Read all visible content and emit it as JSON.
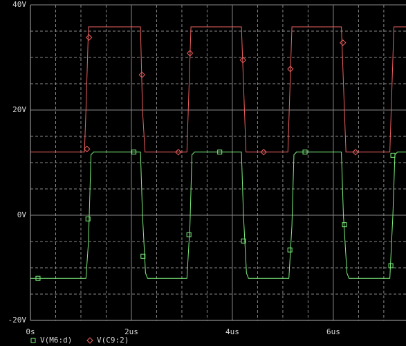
{
  "chart_data": {
    "type": "line",
    "background": "#000000",
    "grid": true,
    "xticks": [
      {
        "value": 0,
        "label": "0s"
      },
      {
        "value": 2,
        "label": "2us"
      },
      {
        "value": 4,
        "label": "4us"
      },
      {
        "value": 6,
        "label": "6us"
      }
    ],
    "xminor": [
      0.5,
      1,
      1.5,
      2.5,
      3,
      3.5,
      4.5,
      5,
      5.5,
      6.5,
      7
    ],
    "xlim": [
      0,
      7.44
    ],
    "yticks": [
      {
        "value": -20,
        "label": "-20V"
      },
      {
        "value": 0,
        "label": "0V"
      },
      {
        "value": 20,
        "label": "20V"
      },
      {
        "value": 40,
        "label": "40V"
      }
    ],
    "yminor": [
      -15,
      -10,
      -5,
      5,
      10,
      15,
      25,
      30,
      35
    ],
    "ylim": [
      -20,
      40
    ],
    "series": [
      {
        "name": "V(M6:d)",
        "color": "#7cf07c",
        "marker": "square",
        "x": [
          0,
          1.1,
          1.15,
          1.2,
          1.25,
          2.18,
          2.22,
          2.28,
          2.32,
          3.1,
          3.16,
          3.2,
          3.25,
          4.18,
          4.22,
          4.28,
          4.32,
          5.12,
          5.18,
          5.22,
          5.27,
          6.16,
          6.2,
          6.27,
          6.31,
          7.12,
          7.18,
          7.22,
          7.27,
          7.44
        ],
        "values": [
          -12,
          -12,
          -5,
          11.5,
          12,
          12,
          0,
          -11,
          -12,
          -12,
          -2,
          11.5,
          12,
          12,
          0,
          -11,
          -12,
          -12,
          -2,
          11.5,
          12,
          12,
          0,
          -11,
          -12,
          -12,
          0,
          11.5,
          12,
          12
        ],
        "markers": {
          "x": [
            0.15,
            1.14,
            2.05,
            2.23,
            3.14,
            3.75,
            4.22,
            5.14,
            5.44,
            6.22,
            7.14,
            7.18
          ],
          "values": [
            -12,
            -0.7,
            12,
            -7.8,
            -3.7,
            12,
            -4.9,
            -6.6,
            12,
            -1.8,
            -9.6,
            11.4
          ]
        }
      },
      {
        "name": "V(C9:2)",
        "color": "#f06060",
        "marker": "diamond",
        "x": [
          0,
          1.07,
          1.1,
          1.15,
          2.18,
          2.22,
          2.27,
          3.1,
          3.18,
          4.18,
          4.27,
          5.1,
          5.18,
          6.16,
          6.25,
          7.12,
          7.2,
          7.44
        ],
        "values": [
          12,
          12,
          20,
          35.8,
          35.8,
          20,
          12,
          12,
          35.8,
          35.8,
          12,
          12,
          35.8,
          35.8,
          12,
          12,
          35.8,
          35.8
        ],
        "markers": {
          "x": [
            1.12,
            1.16,
            2.21,
            2.93,
            3.16,
            4.21,
            4.62,
            5.15,
            6.19,
            6.44
          ],
          "values": [
            12.6,
            33.8,
            26.7,
            12,
            30.8,
            29.5,
            12,
            27.8,
            32.8,
            12
          ]
        }
      }
    ]
  }
}
